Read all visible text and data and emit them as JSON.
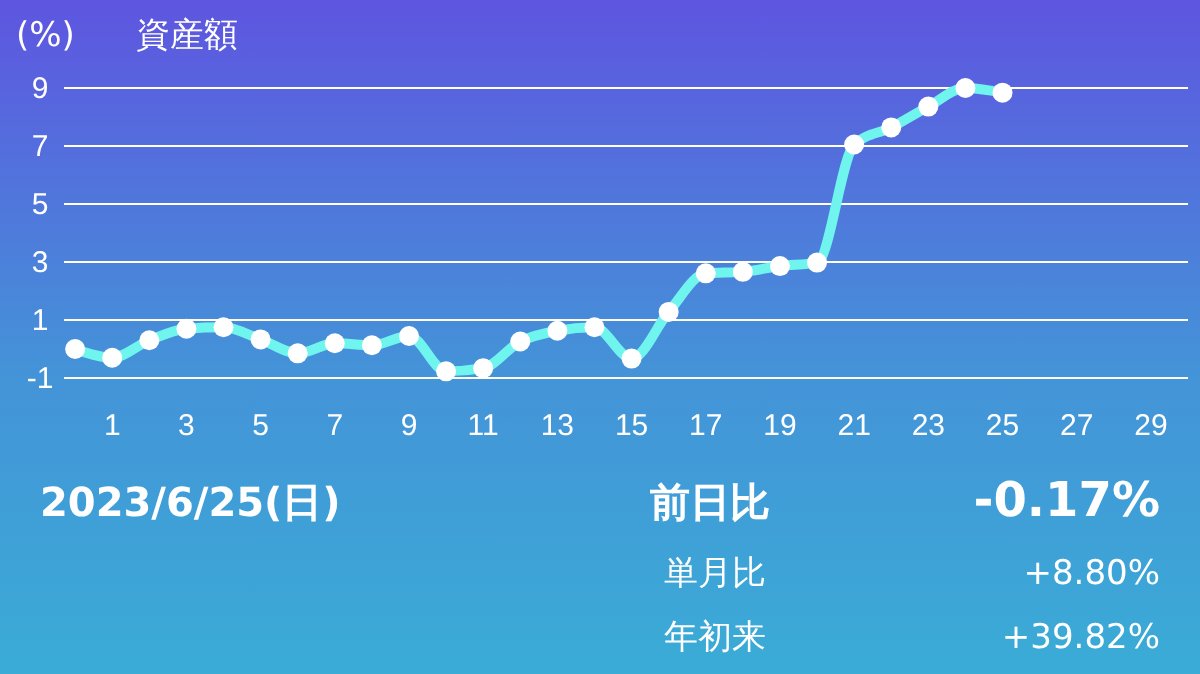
{
  "chart_data": {
    "type": "line",
    "title": "資産額",
    "ylabel": "(%)",
    "x": [
      0,
      1,
      2,
      3,
      4,
      5,
      6,
      7,
      8,
      9,
      10,
      11,
      12,
      13,
      14,
      15,
      16,
      17,
      18,
      19,
      20,
      21,
      22,
      23,
      24,
      25
    ],
    "series": [
      {
        "color": "#6ff5ee",
        "values": [
          0.0,
          -0.3,
          0.3,
          0.7,
          0.75,
          0.33,
          -0.15,
          0.2,
          0.13,
          0.45,
          -0.77,
          -0.66,
          0.26,
          0.63,
          0.75,
          -0.33,
          1.28,
          2.61,
          2.66,
          2.86,
          2.98,
          7.05,
          7.64,
          8.36,
          9.0,
          8.84
        ]
      }
    ],
    "xlim": [
      -0.3,
      30
    ],
    "xticks": [
      1,
      3,
      5,
      7,
      9,
      11,
      13,
      15,
      17,
      19,
      21,
      23,
      25,
      27,
      29
    ],
    "ylim": [
      -1,
      9
    ],
    "yticks": [
      -1,
      1,
      3,
      5,
      7,
      9
    ],
    "grid": "y",
    "marker": "circle",
    "line_style": "solid",
    "annotations": [
      "2023/6/25(日)",
      "前日比",
      "-0.17%",
      "単月比",
      "+8.80%",
      "年初来",
      "+39.82%"
    ]
  }
}
